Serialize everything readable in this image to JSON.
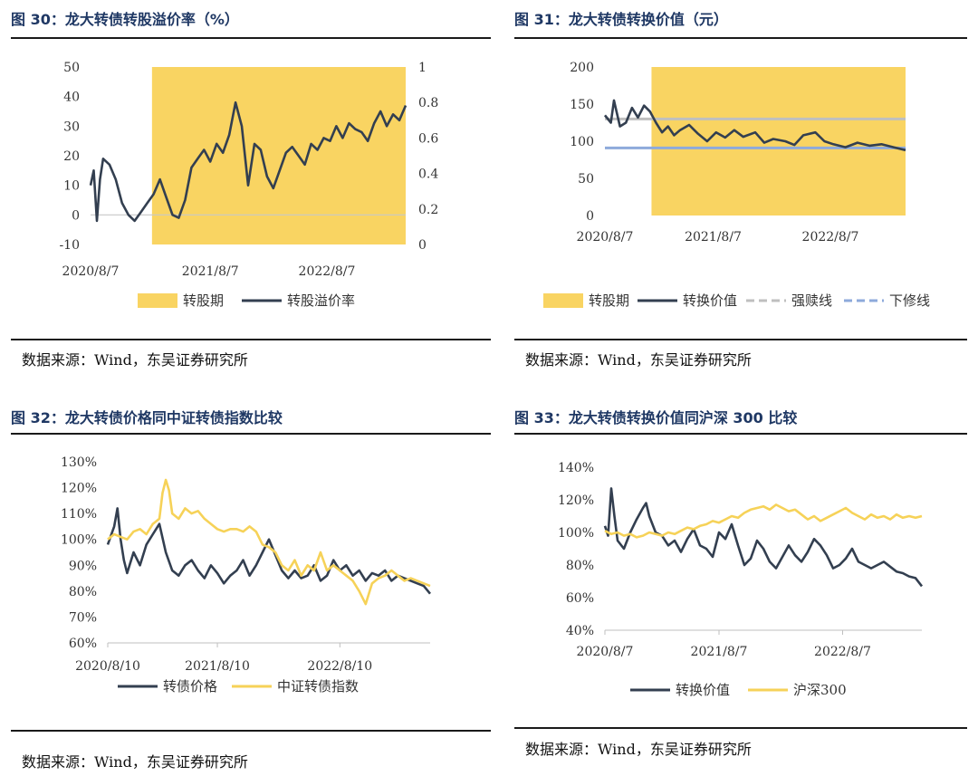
{
  "source_text": "数据来源：Wind，东吴证券研究所",
  "chart_data": [
    {
      "type": "area+line",
      "title": "图 30：龙大转债转股溢价率（%）",
      "xlabel": "",
      "ylabel": "",
      "x_ticks": [
        "2020/8/7",
        "2021/8/7",
        "2022/8/7"
      ],
      "y_ticks": [
        "50",
        "40",
        "30",
        "20",
        "10",
        "0",
        "-10"
      ],
      "y2_ticks": [
        "1",
        "0.8",
        "0.6",
        "0.4",
        "0.2",
        "0"
      ],
      "ylim": [
        -10,
        50
      ],
      "y2lim": [
        0,
        1
      ],
      "legend": [
        "转股期",
        "转股溢价率"
      ],
      "legend_position": "bottom",
      "conversion_period": {
        "start": 0.195,
        "end": 1.0,
        "value": 1
      },
      "series": [
        {
          "name": "转股溢价率",
          "color": "#333f50",
          "x": [
            0,
            0.01,
            0.02,
            0.03,
            0.04,
            0.06,
            0.08,
            0.1,
            0.12,
            0.14,
            0.16,
            0.18,
            0.2,
            0.22,
            0.24,
            0.26,
            0.28,
            0.3,
            0.32,
            0.34,
            0.36,
            0.38,
            0.4,
            0.42,
            0.44,
            0.46,
            0.48,
            0.5,
            0.52,
            0.54,
            0.56,
            0.58,
            0.6,
            0.62,
            0.64,
            0.66,
            0.68,
            0.7,
            0.72,
            0.74,
            0.76,
            0.78,
            0.8,
            0.82,
            0.84,
            0.86,
            0.88,
            0.9,
            0.92,
            0.94,
            0.96,
            0.98,
            1.0
          ],
          "values": [
            10,
            15,
            -2,
            12,
            19,
            17,
            12,
            4,
            0,
            -2,
            1,
            4,
            7,
            12,
            6,
            0,
            -1,
            5,
            16,
            19,
            22,
            18,
            24,
            21,
            27,
            38,
            30,
            10,
            24,
            22,
            13,
            9,
            15,
            21,
            23,
            20,
            17,
            24,
            22,
            26,
            25,
            30,
            26,
            31,
            29,
            28,
            25,
            31,
            35,
            30,
            34,
            32,
            37
          ]
        }
      ]
    },
    {
      "type": "area+line",
      "title": "图 31：龙大转债转换价值（元）",
      "xlabel": "",
      "ylabel": "",
      "x_ticks": [
        "2020/8/7",
        "2021/8/7",
        "2022/8/7"
      ],
      "y_ticks": [
        "200",
        "150",
        "100",
        "50",
        "0"
      ],
      "ylim": [
        0,
        200
      ],
      "legend": [
        "转股期",
        "转换价值",
        "强赎线",
        "下修线"
      ],
      "legend_position": "bottom",
      "conversion_period": {
        "start": 0.155,
        "end": 1.0,
        "value": 200
      },
      "strong_redemption_line": 130,
      "downward_revision_line": 91,
      "series": [
        {
          "name": "转换价值",
          "color": "#333f50",
          "x": [
            0,
            0.02,
            0.03,
            0.05,
            0.07,
            0.09,
            0.11,
            0.13,
            0.15,
            0.17,
            0.19,
            0.21,
            0.23,
            0.25,
            0.28,
            0.31,
            0.34,
            0.37,
            0.4,
            0.43,
            0.46,
            0.5,
            0.53,
            0.56,
            0.6,
            0.63,
            0.66,
            0.7,
            0.73,
            0.76,
            0.8,
            0.84,
            0.88,
            0.92,
            0.96,
            1.0
          ],
          "values": [
            135,
            125,
            155,
            120,
            125,
            145,
            132,
            148,
            140,
            125,
            112,
            120,
            108,
            115,
            122,
            110,
            100,
            112,
            105,
            115,
            106,
            112,
            98,
            103,
            100,
            95,
            108,
            112,
            100,
            96,
            92,
            98,
            94,
            96,
            92,
            88
          ]
        }
      ]
    },
    {
      "type": "line",
      "title": "图 32：龙大转债价格同中证转债指数比较",
      "xlabel": "",
      "ylabel": "",
      "x_ticks": [
        "2020/8/10",
        "2021/8/10",
        "2022/8/10"
      ],
      "y_ticks": [
        "130%",
        "120%",
        "110%",
        "100%",
        "90%",
        "80%",
        "70%",
        "60%"
      ],
      "ylim": [
        60,
        130
      ],
      "legend": [
        "转债价格",
        "中证转债指数"
      ],
      "legend_position": "bottom",
      "series": [
        {
          "name": "转债价格",
          "color": "#333f50",
          "x": [
            0,
            0.02,
            0.03,
            0.04,
            0.05,
            0.06,
            0.08,
            0.1,
            0.12,
            0.14,
            0.16,
            0.18,
            0.2,
            0.22,
            0.24,
            0.26,
            0.28,
            0.3,
            0.32,
            0.34,
            0.36,
            0.38,
            0.4,
            0.42,
            0.44,
            0.46,
            0.48,
            0.5,
            0.52,
            0.54,
            0.56,
            0.58,
            0.6,
            0.62,
            0.64,
            0.66,
            0.68,
            0.7,
            0.72,
            0.74,
            0.76,
            0.78,
            0.8,
            0.82,
            0.84,
            0.86,
            0.88,
            0.9,
            0.92,
            0.94,
            0.96,
            0.98,
            1.0
          ],
          "values": [
            98,
            105,
            112,
            100,
            92,
            87,
            95,
            90,
            98,
            102,
            106,
            95,
            88,
            86,
            90,
            92,
            88,
            85,
            90,
            87,
            83,
            86,
            88,
            92,
            86,
            90,
            95,
            100,
            94,
            88,
            85,
            88,
            85,
            86,
            90,
            84,
            86,
            92,
            88,
            90,
            86,
            88,
            84,
            87,
            86,
            88,
            84,
            86,
            85,
            84,
            83,
            82,
            79
          ]
        },
        {
          "name": "中证转债指数",
          "color": "#f6d258",
          "x": [
            0,
            0.02,
            0.04,
            0.06,
            0.08,
            0.1,
            0.12,
            0.14,
            0.16,
            0.17,
            0.18,
            0.19,
            0.2,
            0.22,
            0.24,
            0.26,
            0.28,
            0.3,
            0.32,
            0.34,
            0.36,
            0.38,
            0.4,
            0.42,
            0.44,
            0.46,
            0.48,
            0.5,
            0.52,
            0.54,
            0.56,
            0.58,
            0.6,
            0.62,
            0.64,
            0.66,
            0.68,
            0.7,
            0.72,
            0.74,
            0.76,
            0.78,
            0.8,
            0.82,
            0.84,
            0.86,
            0.88,
            0.9,
            0.92,
            0.94,
            0.96,
            0.98,
            1.0
          ],
          "values": [
            100,
            102,
            101,
            100,
            103,
            104,
            102,
            106,
            108,
            118,
            123,
            119,
            110,
            108,
            112,
            110,
            111,
            108,
            106,
            104,
            103,
            104,
            104,
            103,
            105,
            103,
            98,
            97,
            95,
            90,
            88,
            92,
            86,
            90,
            88,
            95,
            88,
            90,
            88,
            86,
            84,
            80,
            75,
            83,
            85,
            86,
            88,
            86,
            84,
            85,
            84,
            83,
            82
          ]
        }
      ]
    },
    {
      "type": "line",
      "title": "图 33：龙大转债转换价值同沪深 300 比较",
      "xlabel": "",
      "ylabel": "",
      "x_ticks": [
        "2020/8/7",
        "2021/8/7",
        "2022/8/7"
      ],
      "y_ticks": [
        "140%",
        "120%",
        "100%",
        "80%",
        "60%",
        "40%"
      ],
      "ylim": [
        40,
        140
      ],
      "legend": [
        "转换价值",
        "沪深300"
      ],
      "legend_position": "bottom",
      "series": [
        {
          "name": "转换价值",
          "color": "#333f50",
          "x": [
            0,
            0.01,
            0.02,
            0.03,
            0.04,
            0.06,
            0.08,
            0.1,
            0.12,
            0.13,
            0.14,
            0.16,
            0.18,
            0.2,
            0.22,
            0.24,
            0.26,
            0.28,
            0.3,
            0.32,
            0.34,
            0.36,
            0.38,
            0.4,
            0.42,
            0.44,
            0.46,
            0.48,
            0.5,
            0.52,
            0.54,
            0.56,
            0.58,
            0.6,
            0.62,
            0.64,
            0.66,
            0.68,
            0.7,
            0.72,
            0.74,
            0.76,
            0.78,
            0.8,
            0.82,
            0.84,
            0.86,
            0.88,
            0.9,
            0.92,
            0.94,
            0.96,
            0.98,
            1.0
          ],
          "values": [
            104,
            98,
            127,
            110,
            95,
            90,
            100,
            108,
            115,
            118,
            110,
            100,
            98,
            92,
            95,
            88,
            96,
            102,
            92,
            90,
            85,
            100,
            96,
            105,
            92,
            80,
            84,
            95,
            90,
            82,
            78,
            85,
            92,
            86,
            82,
            88,
            96,
            92,
            86,
            78,
            80,
            84,
            90,
            82,
            80,
            78,
            80,
            82,
            79,
            76,
            75,
            73,
            72,
            67
          ]
        },
        {
          "name": "沪深300",
          "color": "#f6d258",
          "x": [
            0,
            0.02,
            0.04,
            0.06,
            0.08,
            0.1,
            0.12,
            0.14,
            0.16,
            0.18,
            0.2,
            0.22,
            0.24,
            0.26,
            0.28,
            0.3,
            0.32,
            0.34,
            0.36,
            0.38,
            0.4,
            0.42,
            0.44,
            0.46,
            0.48,
            0.5,
            0.52,
            0.54,
            0.56,
            0.58,
            0.6,
            0.62,
            0.64,
            0.66,
            0.68,
            0.7,
            0.72,
            0.74,
            0.76,
            0.78,
            0.8,
            0.82,
            0.84,
            0.86,
            0.88,
            0.9,
            0.92,
            0.94,
            0.96,
            0.98,
            1.0
          ],
          "values": [
            101,
            99,
            100,
            98,
            99,
            97,
            98,
            100,
            99,
            98,
            100,
            99,
            101,
            103,
            102,
            104,
            105,
            107,
            106,
            108,
            110,
            109,
            112,
            114,
            115,
            116,
            114,
            117,
            115,
            113,
            114,
            111,
            108,
            110,
            107,
            109,
            111,
            113,
            115,
            112,
            110,
            108,
            111,
            109,
            110,
            108,
            111,
            109,
            110,
            109,
            110
          ]
        }
      ]
    }
  ]
}
